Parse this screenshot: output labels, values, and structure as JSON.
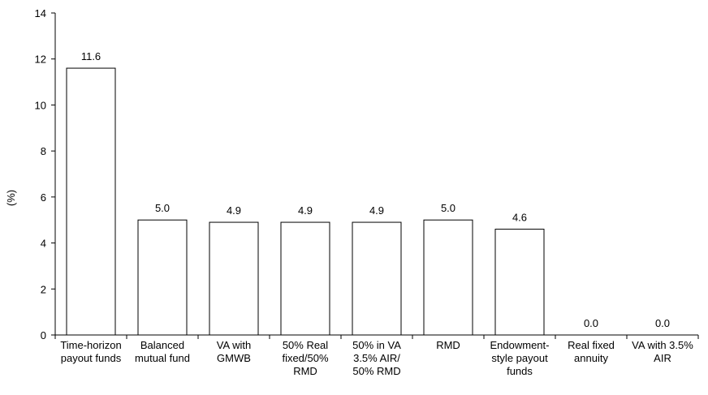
{
  "chart_data": {
    "type": "bar",
    "title": "",
    "xlabel": "",
    "ylabel": "(%)",
    "ylim": [
      0,
      14
    ],
    "yticks": [
      0,
      2,
      4,
      6,
      8,
      10,
      12,
      14
    ],
    "grid": false,
    "legend": "none",
    "categories": [
      [
        "Time-horizon",
        "payout funds"
      ],
      [
        "Balanced",
        "mutual fund"
      ],
      [
        "VA with",
        "GMWB"
      ],
      [
        "50% Real",
        "fixed/50%",
        "RMD"
      ],
      [
        "50% in VA",
        "3.5% AIR/",
        "50% RMD"
      ],
      [
        "RMD"
      ],
      [
        "Endowment-",
        "style payout",
        "funds"
      ],
      [
        "Real fixed",
        "annuity"
      ],
      [
        "VA with 3.5%",
        "AIR"
      ]
    ],
    "values": [
      11.6,
      5.0,
      4.9,
      4.9,
      4.9,
      5.0,
      4.6,
      0.0,
      0.0
    ],
    "data_labels": [
      "11.6",
      "5.0",
      "4.9",
      "4.9",
      "4.9",
      "5.0",
      "4.6",
      "0.0",
      "0.0"
    ],
    "colors": {
      "bar_fill": "#ffffff",
      "bar_stroke": "#000000",
      "axis": "#000000",
      "text": "#000000"
    }
  }
}
